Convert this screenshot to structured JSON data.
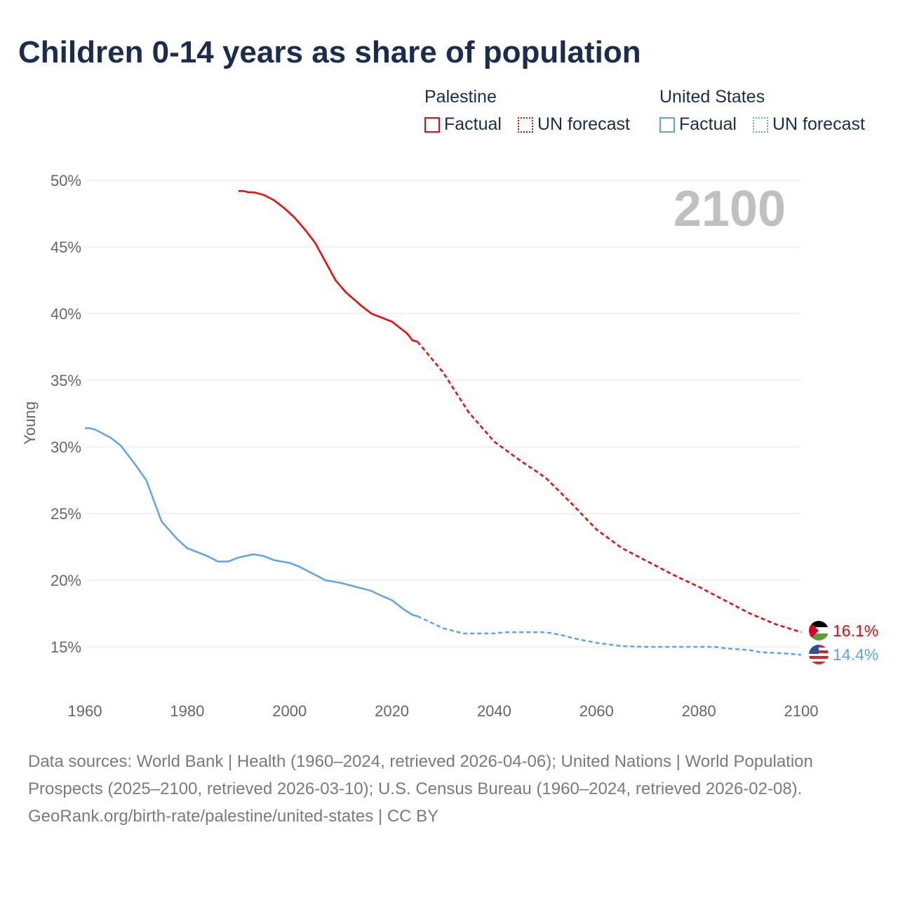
{
  "chart_data": {
    "type": "line",
    "title": "Children 0-14 years as share of population",
    "ylabel": "Young",
    "xlabel": "",
    "xlim": [
      1960,
      2100
    ],
    "ylim": [
      13,
      50
    ],
    "x_ticks": [
      "1960",
      "1980",
      "2000",
      "2020",
      "2040",
      "2060",
      "2080",
      "2100"
    ],
    "y_ticks": [
      "15%",
      "20%",
      "25%",
      "30%",
      "35%",
      "40%",
      "45%",
      "50%"
    ],
    "grid": true,
    "year_label": "2100",
    "legend": {
      "placement": "top-right",
      "groups": [
        {
          "name": "Palestine",
          "factual": "Factual",
          "forecast": "UN forecast",
          "color": "#ff0000"
        },
        {
          "name": "United States",
          "factual": "Factual",
          "forecast": "UN forecast",
          "color": "#5ba4ec"
        }
      ]
    },
    "series": [
      {
        "name": "Palestine",
        "color": "#ff0000",
        "end_label": "16.1%",
        "factual": [
          [
            1990,
            49.2
          ],
          [
            1991,
            49.2
          ],
          [
            1992,
            49.1
          ],
          [
            1993,
            49.1
          ],
          [
            1995,
            48.9
          ],
          [
            1997,
            48.5
          ],
          [
            1999,
            47.9
          ],
          [
            2001,
            47.2
          ],
          [
            2003,
            46.3
          ],
          [
            2005,
            45.3
          ],
          [
            2007,
            43.9
          ],
          [
            2009,
            42.5
          ],
          [
            2011,
            41.6
          ],
          [
            2014,
            40.6
          ],
          [
            2016,
            40.0
          ],
          [
            2018,
            39.7
          ],
          [
            2020,
            39.4
          ],
          [
            2022,
            38.8
          ],
          [
            2023,
            38.5
          ],
          [
            2024,
            38.0
          ],
          [
            2025,
            37.9
          ]
        ],
        "forecast": [
          [
            2025,
            37.9
          ],
          [
            2030,
            35.6
          ],
          [
            2035,
            32.6
          ],
          [
            2040,
            30.4
          ],
          [
            2045,
            29.0
          ],
          [
            2050,
            27.7
          ],
          [
            2055,
            25.8
          ],
          [
            2060,
            23.8
          ],
          [
            2065,
            22.4
          ],
          [
            2070,
            21.4
          ],
          [
            2075,
            20.4
          ],
          [
            2080,
            19.5
          ],
          [
            2085,
            18.5
          ],
          [
            2090,
            17.5
          ],
          [
            2095,
            16.7
          ],
          [
            2100,
            16.1
          ]
        ]
      },
      {
        "name": "United States",
        "color": "#5ba4ec",
        "end_label": "14.4%",
        "factual": [
          [
            1960,
            31.4
          ],
          [
            1961,
            31.4
          ],
          [
            1962,
            31.3
          ],
          [
            1965,
            30.7
          ],
          [
            1967,
            30.1
          ],
          [
            1970,
            28.6
          ],
          [
            1972,
            27.5
          ],
          [
            1975,
            24.4
          ],
          [
            1978,
            23.1
          ],
          [
            1980,
            22.4
          ],
          [
            1982,
            22.1
          ],
          [
            1984,
            21.8
          ],
          [
            1986,
            21.4
          ],
          [
            1988,
            21.4
          ],
          [
            1990,
            21.7
          ],
          [
            1993,
            21.95
          ],
          [
            1995,
            21.8
          ],
          [
            1997,
            21.5
          ],
          [
            2000,
            21.3
          ],
          [
            2002,
            21.0
          ],
          [
            2005,
            20.4
          ],
          [
            2007,
            20.0
          ],
          [
            2010,
            19.8
          ],
          [
            2013,
            19.5
          ],
          [
            2016,
            19.2
          ],
          [
            2017,
            19.0
          ],
          [
            2020,
            18.5
          ],
          [
            2022,
            17.9
          ],
          [
            2024,
            17.4
          ],
          [
            2025,
            17.3
          ]
        ],
        "forecast": [
          [
            2025,
            17.3
          ],
          [
            2030,
            16.4
          ],
          [
            2034,
            16.0
          ],
          [
            2040,
            16.0
          ],
          [
            2042,
            16.1
          ],
          [
            2050,
            16.1
          ],
          [
            2053,
            15.9
          ],
          [
            2056,
            15.6
          ],
          [
            2060,
            15.3
          ],
          [
            2065,
            15.05
          ],
          [
            2070,
            15.0
          ],
          [
            2083,
            15.0
          ],
          [
            2085,
            14.9
          ],
          [
            2090,
            14.75
          ],
          [
            2092,
            14.6
          ],
          [
            2097,
            14.5
          ],
          [
            2100,
            14.4
          ]
        ]
      }
    ]
  },
  "footer": {
    "sources": "Data sources: World Bank | Health (1960–2024, retrieved 2026-04-06); United Nations | World Population Prospects (2025–2100, retrieved 2026-03-10); U.S. Census Bureau (1960–2024, retrieved 2026-02-08).",
    "link": "GeoRank.org/birth-rate/palestine/united-states | CC BY"
  }
}
